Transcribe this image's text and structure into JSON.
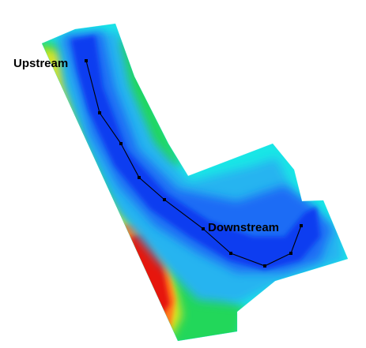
{
  "map": {
    "labels": {
      "upstream": "Upstream",
      "downstream": "Downstream"
    },
    "colors": {
      "background": "#ffffff",
      "channel_deep": "#0a3cf0",
      "channel_mid": "#1e6cf5",
      "shallow": "#28b4f0",
      "bank_cyan": "#19e6e6",
      "bank_green": "#22d75a",
      "bank_yellow": "#e6e61e",
      "bank_orange": "#ff7a1a",
      "bank_red": "#e6140a",
      "profile_line": "#000000"
    },
    "color_scale": [
      "#0a3cf0",
      "#1e6cf5",
      "#28b4f0",
      "#19e6e6",
      "#22d75a",
      "#e6e61e",
      "#ff7a1a",
      "#e6140a"
    ],
    "profile_station_count": 10
  }
}
